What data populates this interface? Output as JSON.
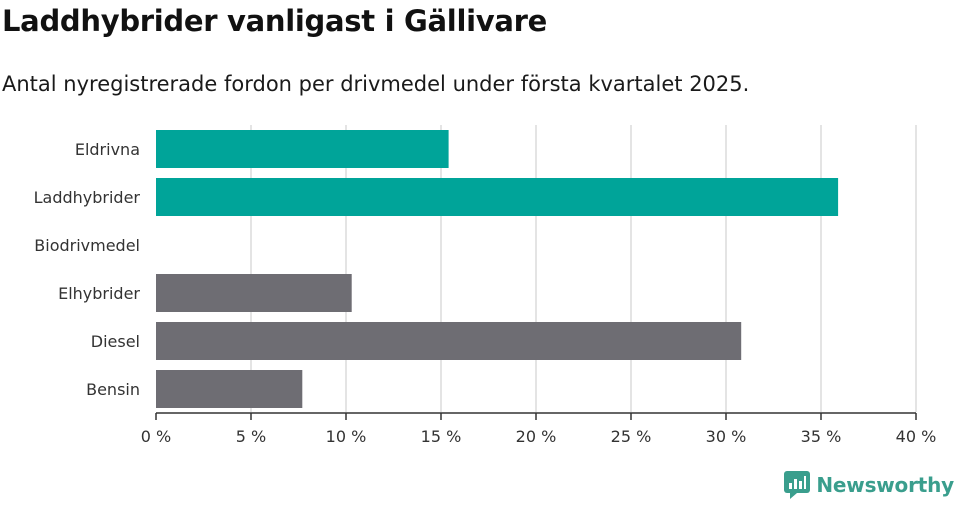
{
  "title": "Laddhybrider vanligast i Gällivare",
  "subtitle": "Antal nyregistrerade fordon per drivmedel under första kvartalet 2025.",
  "brand": {
    "name": "Newsworthy",
    "icon": "newsworthy-logo-icon",
    "color": "#3a9e8d"
  },
  "chart_data": {
    "type": "bar",
    "orientation": "horizontal",
    "categories": [
      "Eldrivna",
      "Laddhybrider",
      "Biodrivmedel",
      "Elhybrider",
      "Diesel",
      "Bensin"
    ],
    "values": [
      15.4,
      35.9,
      0,
      10.3,
      30.8,
      7.7
    ],
    "colors": [
      "#00a499",
      "#00a499",
      "#00a499",
      "#6e6d73",
      "#6e6d73",
      "#6e6d73"
    ],
    "xlim": [
      0,
      40
    ],
    "xticks": [
      0,
      5,
      10,
      15,
      20,
      25,
      30,
      35,
      40
    ],
    "xtick_labels": [
      "0 %",
      "5 %",
      "10 %",
      "15 %",
      "20 %",
      "25 %",
      "30 %",
      "35 %",
      "40 %"
    ],
    "grid": "vertical"
  }
}
